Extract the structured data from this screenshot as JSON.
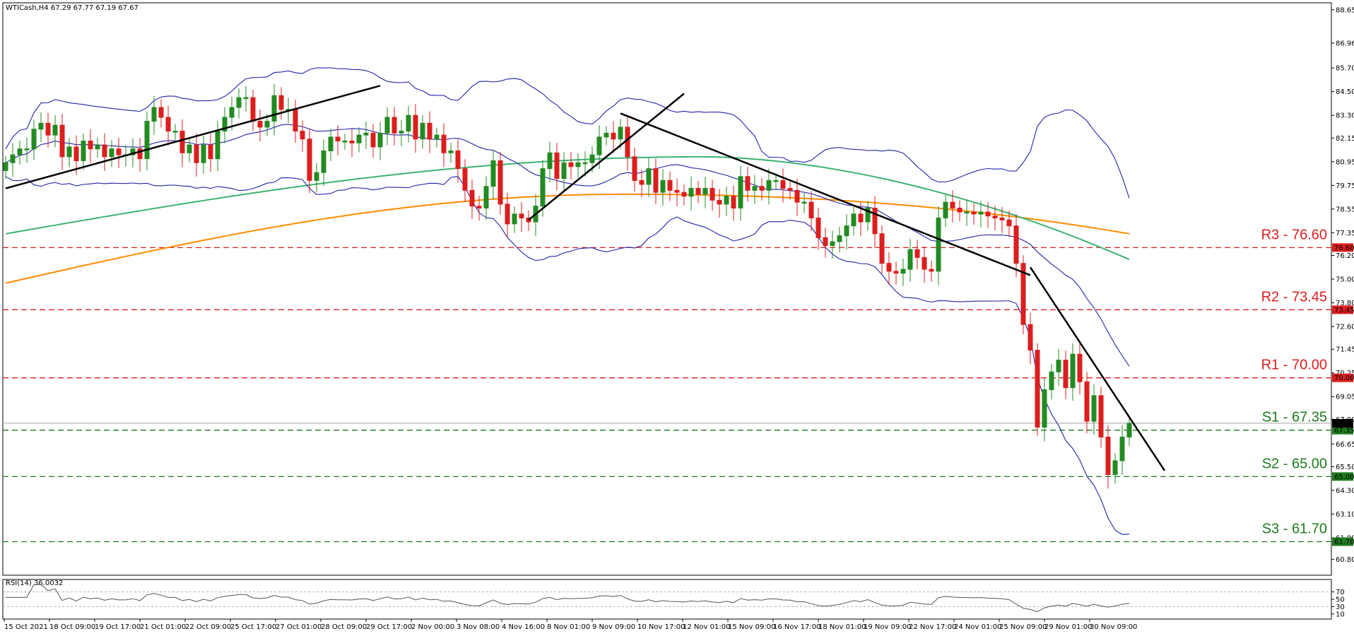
{
  "header": {
    "symbol_info": "WTICash,H4  67.29 67.77 67.19 67.67",
    "rsi_info": "RSI(14) 36.0032"
  },
  "colors": {
    "bull": "#228B22",
    "bear": "#DC1E1E",
    "ma_green": "#3CB371",
    "ma_orange": "#FF8C00",
    "bollinger": "#2222AA",
    "resistance": "#DC1E1E",
    "support": "#1E7B1E",
    "trendline": "#000000"
  },
  "chart_data": [
    {
      "type": "candlestick",
      "ylim": [
        60.0,
        89.0
      ],
      "y_ticks": [
        "88.65",
        "86.96",
        "85.70",
        "84.50",
        "83.30",
        "82.15",
        "80.95",
        "79.75",
        "78.55",
        "77.35",
        "76.20",
        "75.00",
        "73.80",
        "72.60",
        "71.45",
        "70.25",
        "69.05",
        "67.90",
        "66.65",
        "65.50",
        "64.30",
        "63.10",
        "61.90",
        "60.80"
      ],
      "x_labels": [
        "15 Oct 2021",
        "18 Oct 09:00",
        "19 Oct 17:00",
        "21 Oct 01:00",
        "22 Oct 09:00",
        "25 Oct 17:00",
        "27 Oct 01:00",
        "28 Oct 09:00",
        "29 Oct 17:00",
        "2 Nov 00:00",
        "3 Nov 08:00",
        "4 Nov 16:00",
        "8 Nov 01:00",
        "9 Nov 09:00",
        "10 Nov 17:00",
        "12 Nov 01:00",
        "15 Nov 09:00",
        "16 Nov 17:00",
        "18 Nov 01:00",
        "19 Nov 09:00",
        "22 Nov 17:00",
        "24 Nov 01:00",
        "25 Nov 09:00",
        "29 Nov 01:00",
        "30 Nov 09:00"
      ],
      "current_price": "67.67",
      "levels": [
        {
          "label": "R3 - 76.60",
          "tag": "76.60",
          "value": 76.6,
          "kind": "resistance"
        },
        {
          "label": "R2 - 73.45",
          "tag": "73.45",
          "value": 73.45,
          "kind": "resistance"
        },
        {
          "label": "R1 - 70.00",
          "tag": "70.00",
          "value": 70.0,
          "kind": "resistance"
        },
        {
          "label": "S1 - 67.35",
          "tag": "67.35",
          "value": 67.35,
          "kind": "support"
        },
        {
          "label": "S2 - 65.00",
          "tag": "65.00",
          "value": 65.0,
          "kind": "support"
        },
        {
          "label": "S3 - 61.70",
          "tag": "61.70",
          "value": 61.7,
          "kind": "support"
        }
      ],
      "closes": [
        80.9,
        81.3,
        81.6,
        81.6,
        82.6,
        82.9,
        82.3,
        82.8,
        81.2,
        81.7,
        81.0,
        82.0,
        81.6,
        81.8,
        81.2,
        81.6,
        81.3,
        81.3,
        81.6,
        81.1,
        83.0,
        83.7,
        83.2,
        82.5,
        82.5,
        81.4,
        81.8,
        80.9,
        81.8,
        81.1,
        82.5,
        83.2,
        83.7,
        84.2,
        84.2,
        83.0,
        82.7,
        83.0,
        84.3,
        83.6,
        83.6,
        82.5,
        82.1,
        80.0,
        80.4,
        81.5,
        82.2,
        82.0,
        82.0,
        81.9,
        82.3,
        82.4,
        81.7,
        82.4,
        83.2,
        82.4,
        82.5,
        83.3,
        82.1,
        82.9,
        82.1,
        82.3,
        81.4,
        81.5,
        80.6,
        79.5,
        78.7,
        78.6,
        79.7,
        81.0,
        78.8,
        77.8,
        78.3,
        78.1,
        77.9,
        78.7,
        80.6,
        81.4,
        80.1,
        80.9,
        80.7,
        80.9,
        80.9,
        81.3,
        82.2,
        82.4,
        82.1,
        82.7,
        81.2,
        80.0,
        79.8,
        80.6,
        79.4,
        80.0,
        79.5,
        79.4,
        79.2,
        79.6,
        79.3,
        79.6,
        79.0,
        78.8,
        79.2,
        78.6,
        80.2,
        79.5,
        79.7,
        79.5,
        80.0,
        80.0,
        79.6,
        79.5,
        78.9,
        78.9,
        78.1,
        77.1,
        76.7,
        76.9,
        77.2,
        77.7,
        78.3,
        77.9,
        78.6,
        77.3,
        75.8,
        75.4,
        75.3,
        75.5,
        76.5,
        76.1,
        75.5,
        75.4,
        78.1,
        78.9,
        78.6,
        78.4,
        78.4,
        78.3,
        78.4,
        78.2,
        78.1,
        78.0,
        77.7,
        75.8,
        72.7,
        71.4,
        67.5,
        69.4,
        70.3,
        70.9,
        69.5,
        71.2,
        69.8,
        67.8,
        69.1,
        67.0,
        65.1,
        65.8,
        67.0,
        67.7
      ]
    },
    {
      "type": "line",
      "title": "RSI(14) 36.0032",
      "ylim": [
        0,
        100
      ],
      "y_ticks": [
        "70",
        "50",
        "30",
        "10"
      ]
    }
  ]
}
